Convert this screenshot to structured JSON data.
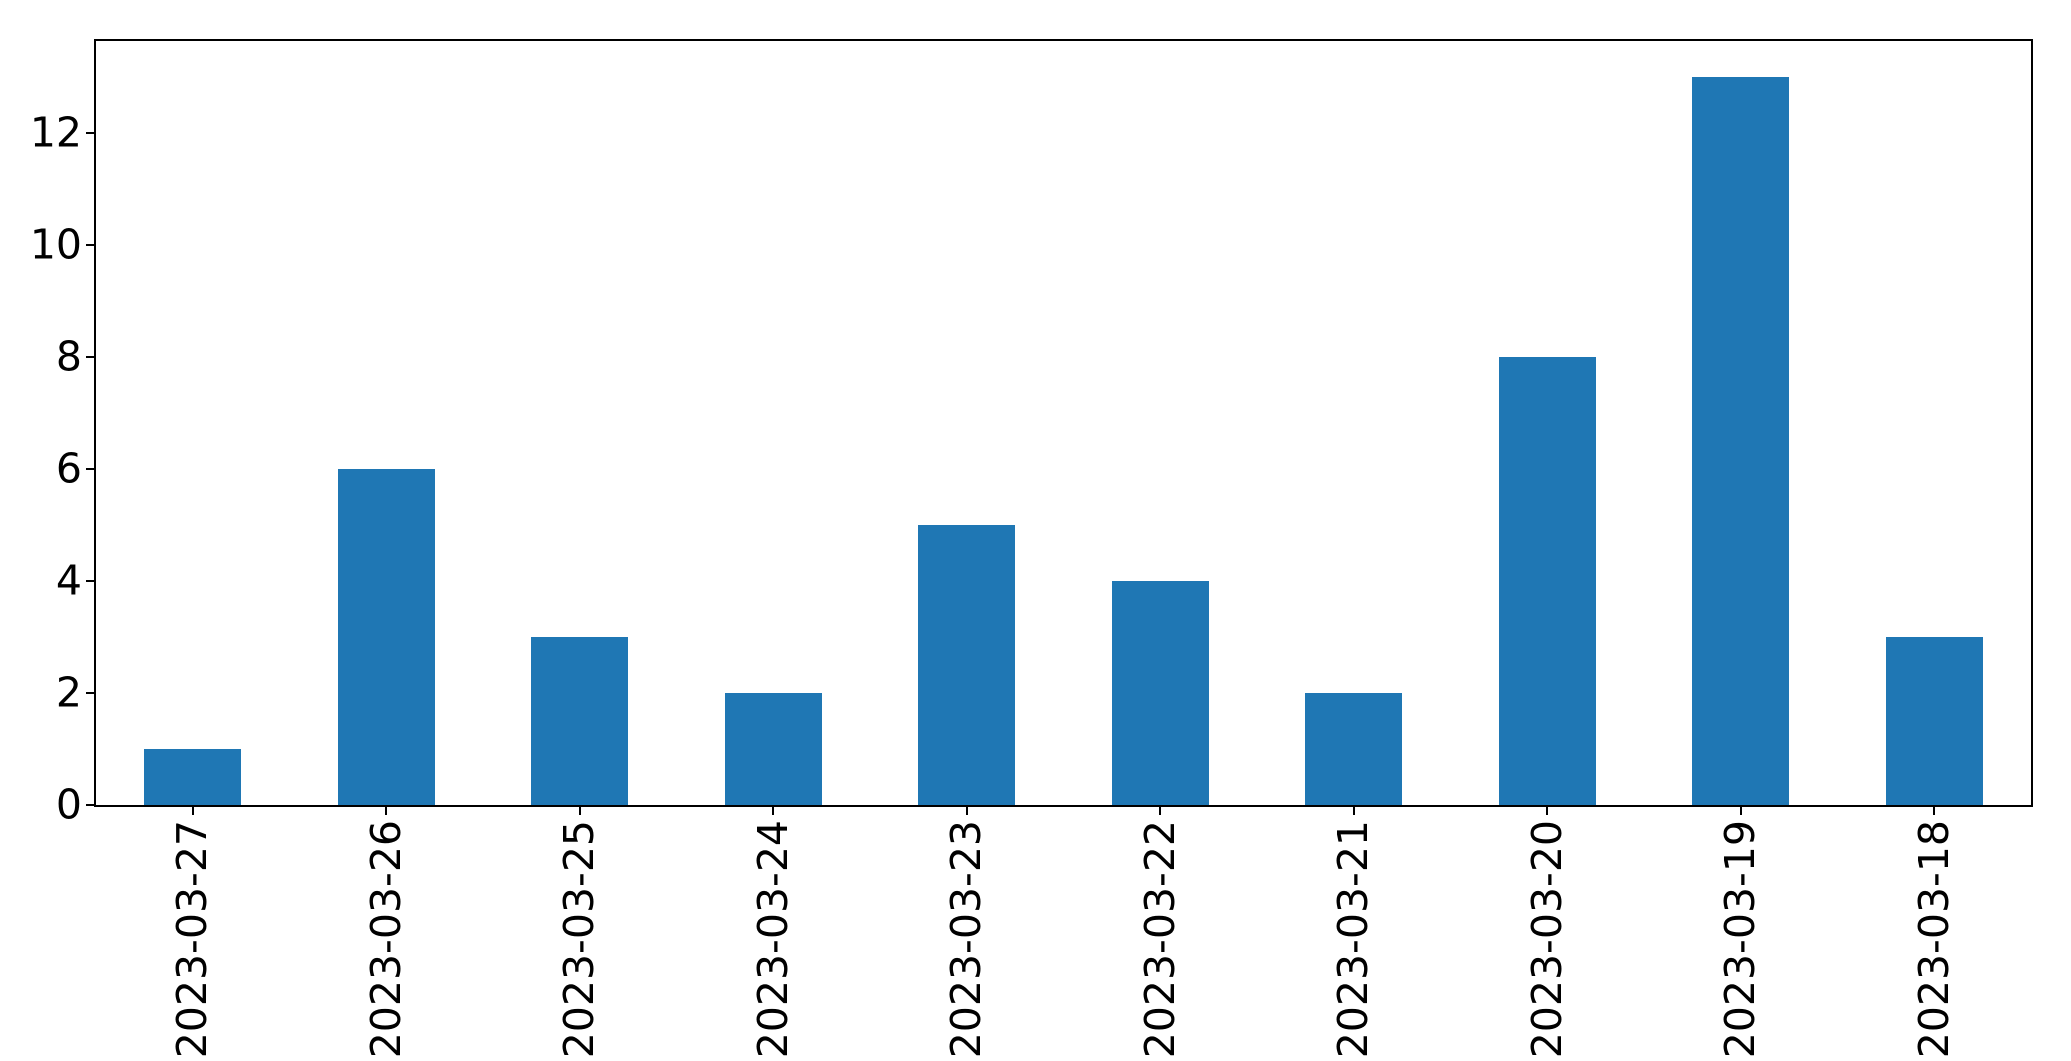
{
  "chart_data": {
    "type": "bar",
    "title": "",
    "xlabel": "",
    "ylabel": "",
    "categories": [
      "2023-03-27",
      "2023-03-26",
      "2023-03-25",
      "2023-03-24",
      "2023-03-23",
      "2023-03-22",
      "2023-03-21",
      "2023-03-20",
      "2023-03-19",
      "2023-03-18"
    ],
    "values": [
      1,
      6,
      3,
      2,
      5,
      4,
      2,
      8,
      13,
      3
    ],
    "yticks": [
      0,
      2,
      4,
      6,
      8,
      10,
      12
    ],
    "ylim": [
      0,
      13.65
    ],
    "x_tick_rotation": 90,
    "bar_color": "#1f77b4",
    "spine_color": "#000000",
    "grid": false,
    "legend_position": "none"
  }
}
